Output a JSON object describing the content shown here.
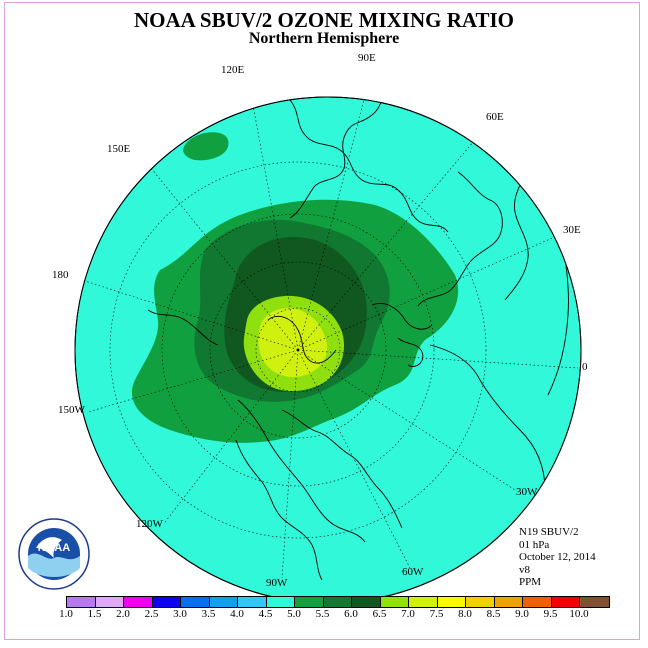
{
  "title": "NOAA SBUV/2 OZONE MIXING RATIO",
  "subtitle": "Northern Hemisphere",
  "longitude_labels": {
    "e90": "90E",
    "e120": "120E",
    "e60": "60E",
    "e150": "150E",
    "e30": "30E",
    "d180": "180",
    "d0": "0",
    "w150": "150W",
    "w30": "30W",
    "w120": "120W",
    "w60": "60W",
    "w90": "90W"
  },
  "info": {
    "instrument": "N19 SBUV/2",
    "level": "01 hPa",
    "date": "October 12, 2014",
    "version": "v8",
    "units": "PPM"
  },
  "logo": {
    "text": "NOAA"
  },
  "colorbar": {
    "ticks": [
      "1.0",
      "1.5",
      "2.0",
      "2.5",
      "3.0",
      "3.5",
      "4.0",
      "4.5",
      "5.0",
      "5.5",
      "6.0",
      "6.5",
      "7.0",
      "7.5",
      "8.0",
      "8.5",
      "9.0",
      "9.5",
      "10.0"
    ],
    "colors": [
      "#b878f0",
      "#e0a8f8",
      "#f000f0",
      "#1000f0",
      "#0070f0",
      "#10a0f0",
      "#30c8f8",
      "#30f8d8",
      "#10a040",
      "#107830",
      "#105820",
      "#90e010",
      "#d0f010",
      "#f8f800",
      "#f0d000",
      "#f0a000",
      "#f06000",
      "#f00000",
      "#805030"
    ]
  },
  "map_fill_colors": {
    "background": "#30f8d8",
    "level_5_0": "#10a040",
    "level_5_5": "#107830",
    "level_6_0": "#105820",
    "level_6_5": "#90e010",
    "level_7_0": "#d0f010"
  }
}
